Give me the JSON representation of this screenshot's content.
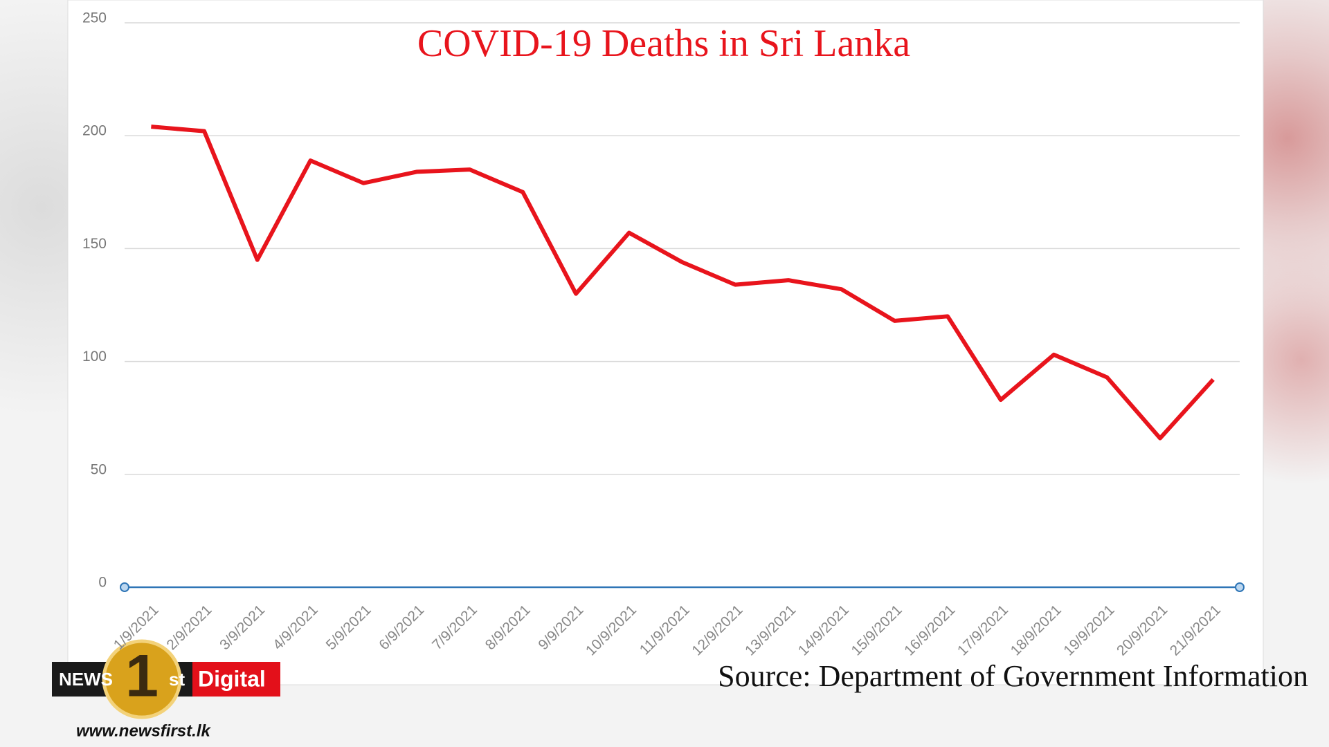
{
  "chart_data": {
    "type": "line",
    "title": "COVID-19 Deaths in Sri Lanka",
    "source": "Source: Department of Government Information",
    "categories": [
      "1/9/2021",
      "2/9/2021",
      "3/9/2021",
      "4/9/2021",
      "5/9/2021",
      "6/9/2021",
      "7/9/2021",
      "8/9/2021",
      "9/9/2021",
      "10/9/2021",
      "11/9/2021",
      "12/9/2021",
      "13/9/2021",
      "14/9/2021",
      "15/9/2021",
      "16/9/2021",
      "17/9/2021",
      "18/9/2021",
      "19/9/2021",
      "20/9/2021",
      "21/9/2021"
    ],
    "values": [
      204,
      202,
      145,
      189,
      179,
      184,
      185,
      175,
      130,
      157,
      144,
      134,
      136,
      132,
      118,
      120,
      83,
      103,
      93,
      66,
      92
    ],
    "color": "#e8141c",
    "axis_color": "#2e75b6",
    "ylim": [
      0,
      250
    ],
    "yticks": [
      0,
      50,
      100,
      150,
      200,
      250
    ],
    "grid": true
  },
  "logo": {
    "news": "NEWS",
    "number": "1",
    "suffix": "st",
    "digital": "Digital",
    "url": "www.newsfirst.lk"
  }
}
